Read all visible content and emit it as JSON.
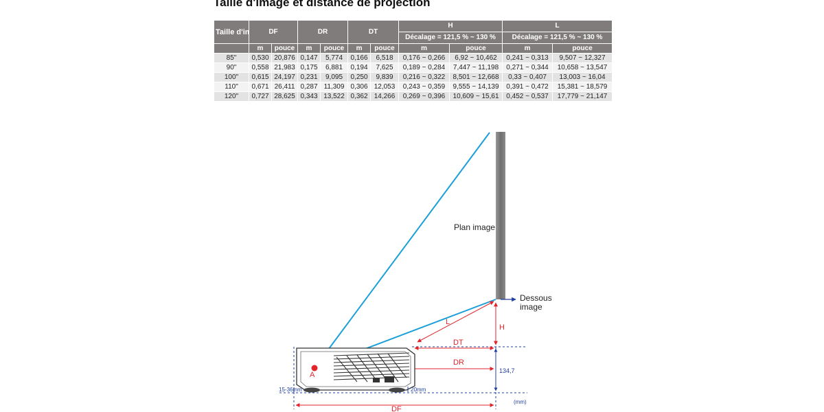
{
  "title": "Taille d'image et distance de projection",
  "table": {
    "header": {
      "size": "Taille d'image (pouces)",
      "df": "DF",
      "dr": "DR",
      "dt": "DT",
      "h": "H",
      "h_sub": "Décalage = 121,5 % ~ 130 %",
      "l": "L",
      "l_sub": "Décalage = 121,5 % ~ 130 %",
      "m": "m",
      "pouce": "pouce"
    },
    "rows": [
      [
        "85\"",
        "0,530",
        "20,876",
        "0,147",
        "5,774",
        "0,166",
        "6,518",
        "0,176 ~ 0,266",
        "6,92 ~ 10,462",
        "0,241 ~ 0,313",
        "9,507 ~ 12,327"
      ],
      [
        "90\"",
        "0,558",
        "21,983",
        "0,175",
        "6,881",
        "0,194",
        "7,625",
        "0,189 ~ 0,284",
        "7,447 ~ 11,198",
        "0,271 ~ 0,344",
        "10,658 ~ 13,547"
      ],
      [
        "100\"",
        "0,615",
        "24,197",
        "0,231",
        "9,095",
        "0,250",
        "9,839",
        "0,216 ~ 0,322",
        "8,501 ~ 12,668",
        "0,33 ~ 0,407",
        "13,003 ~ 16,04"
      ],
      [
        "110\"",
        "0,671",
        "26,411",
        "0,287",
        "11,309",
        "0,306",
        "12,053",
        "0,243 ~ 0,359",
        "9,555 ~ 14,139",
        "0,391 ~ 0,472",
        "15,381 ~ 18,579"
      ],
      [
        "120\"",
        "0,727",
        "28,625",
        "0,343",
        "13,522",
        "0,362",
        "14,266",
        "0,269 ~ 0,396",
        "10,609 ~ 15,61",
        "0,452 ~ 0,537",
        "17,779 ~ 21,147"
      ]
    ]
  },
  "diagram": {
    "plan_image": "Plan image",
    "dessous_line1": "Dessous",
    "dessous_line2": "image",
    "label_L": "L",
    "label_H": "H",
    "label_DT": "DT",
    "label_DR": "DR",
    "label_DF": "DF",
    "label_A": "A",
    "height_134": "134,7",
    "feet_15_36": "15-36mm",
    "feet_20": "20mm",
    "unit_mm": "(mm)",
    "colors": {
      "beam": "#1a9fd8",
      "dimension_red": "#e0262b",
      "dimension_blue": "#1f3fa0",
      "screen_gray": "#808080",
      "header_gray": "#807c7c"
    }
  }
}
